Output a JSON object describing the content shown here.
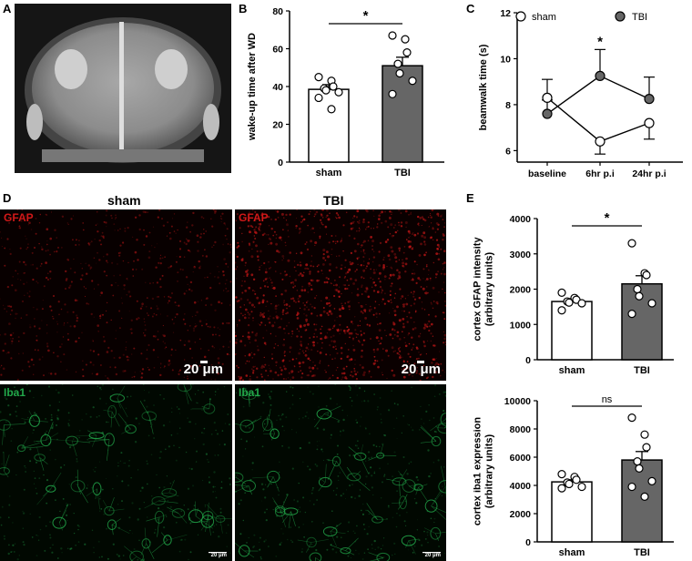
{
  "panels": {
    "A": "A",
    "B": "B",
    "C": "C",
    "D": "D",
    "E": "E"
  },
  "charts": {
    "B": {
      "title_y": "wake-up time after WD",
      "categories": [
        "sham",
        "TBI"
      ],
      "sig": "*",
      "ticks": [
        "0",
        "20",
        "40",
        "60",
        "80"
      ]
    },
    "C": {
      "title_y": "beamwalk time (s)",
      "categories": [
        "baseline",
        "6hr p.i",
        "24hr p.i"
      ],
      "sig": "*",
      "ticks": [
        "6",
        "8",
        "10",
        "12"
      ],
      "legend": [
        "sham",
        "TBI"
      ]
    },
    "E1": {
      "title_y": "cortex GFAP intensity (arbitrary units)",
      "categories": [
        "sham",
        "TBI"
      ],
      "sig": "*",
      "ticks": [
        "0",
        "1000",
        "2000",
        "3000",
        "4000"
      ]
    },
    "E2": {
      "title_y": "cortex iba1 expression (arbitrary units)",
      "categories": [
        "sham",
        "TBI"
      ],
      "sig": "ns",
      "ticks": [
        "0",
        "2000",
        "4000",
        "6000",
        "8000",
        "10000"
      ]
    }
  },
  "micro": {
    "col_sham": "sham",
    "col_tbi": "TBI",
    "gfap": "GFAP",
    "iba1": "Iba1",
    "scale_big": "20 μm",
    "scale_small": "20 μm"
  },
  "colors": {
    "sham": "#ffffff",
    "tbi": "#666666",
    "gfap": "#d01818",
    "iba1": "#22a84a"
  },
  "chart_data": [
    {
      "type": "bar",
      "title": "",
      "ylabel": "wake-up time after WD",
      "categories": [
        "sham",
        "TBI"
      ],
      "values": [
        38.5,
        51
      ],
      "errors": [
        2.5,
        4.5
      ],
      "ylim": [
        0,
        80
      ],
      "points": [
        [
          45,
          43,
          40,
          39,
          38,
          37,
          34,
          28
        ],
        [
          67,
          65,
          58,
          52,
          47,
          43,
          36
        ]
      ],
      "annotation": "*"
    },
    {
      "type": "line",
      "title": "",
      "ylabel": "beamwalk time (s)",
      "x": [
        "baseline",
        "6hr p.i",
        "24hr p.i"
      ],
      "ylim": [
        5.5,
        12
      ],
      "series": [
        {
          "name": "sham",
          "values": [
            8.3,
            6.4,
            7.2
          ],
          "errors": [
            0.8,
            0.55,
            0.7
          ]
        },
        {
          "name": "TBI",
          "values": [
            7.6,
            9.25,
            8.25
          ],
          "errors": [
            0.6,
            1.15,
            0.95
          ]
        }
      ],
      "annotation": "*",
      "legend_position": "top"
    },
    {
      "type": "bar",
      "title": "",
      "ylabel": "cortex GFAP intensity (arbitrary units)",
      "categories": [
        "sham",
        "TBI"
      ],
      "values": [
        1650,
        2150
      ],
      "errors": [
        80,
        230
      ],
      "ylim": [
        0,
        4000
      ],
      "points": [
        [
          1900,
          1750,
          1700,
          1650,
          1620,
          1600,
          1400
        ],
        [
          3300,
          2450,
          2400,
          2000,
          1800,
          1600,
          1300
        ]
      ],
      "annotation": "*"
    },
    {
      "type": "bar",
      "title": "",
      "ylabel": "cortex iba1 expression (arbitrary units)",
      "categories": [
        "sham",
        "TBI"
      ],
      "values": [
        4250,
        5800
      ],
      "errors": [
        150,
        600
      ],
      "ylim": [
        0,
        10000
      ],
      "points": [
        [
          4800,
          4600,
          4400,
          4200,
          4100,
          3900,
          3800
        ],
        [
          8800,
          7600,
          6700,
          5700,
          5200,
          4300,
          3900,
          3200
        ]
      ],
      "annotation": "ns"
    }
  ]
}
